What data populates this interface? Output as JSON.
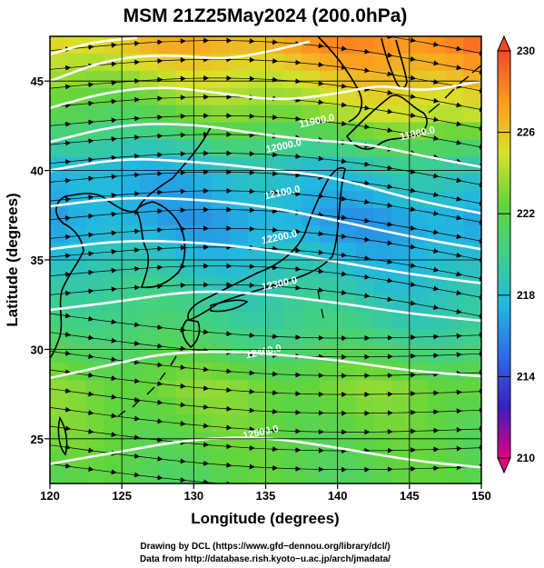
{
  "chart_data": {
    "type": "map",
    "title": "MSM 21Z25May2024 (200.0hPa)",
    "xlabel": "Longitude (degrees)",
    "ylabel": "Latitude  (degrees)",
    "xlim": [
      120,
      150
    ],
    "ylim": [
      22.5,
      47.5
    ],
    "xticks": [
      "120",
      "125",
      "130",
      "135",
      "140",
      "145",
      "150"
    ],
    "yticks": [
      "25",
      "30",
      "35",
      "40",
      "45"
    ],
    "colorbar": {
      "min": 210,
      "max": 230,
      "tick_labels": [
        "230",
        "226",
        "222",
        "218",
        "214",
        "210"
      ],
      "colors": [
        "#e4007f",
        "#3a1fbf",
        "#2f6ae8",
        "#22b8e0",
        "#3fd08a",
        "#62d53c",
        "#d8e22a",
        "#ff9a1e",
        "#f04a2a"
      ]
    },
    "contours": [
      {
        "label": "11900.0",
        "lon": 138.6,
        "lat": 42.6
      },
      {
        "label": "12000.0",
        "lon": 136.3,
        "lat": 41.2
      },
      {
        "label": "12100.0",
        "lon": 136.2,
        "lat": 38.6
      },
      {
        "label": "12200.0",
        "lon": 136.0,
        "lat": 36.1
      },
      {
        "label": "12300.0",
        "lon": 136.0,
        "lat": 33.5
      },
      {
        "label": "12400.0",
        "lon": 134.9,
        "lat": 29.7
      },
      {
        "label": "12500.0",
        "lon": 134.7,
        "lat": 25.2
      },
      {
        "label": "11800.0",
        "lon": 145.6,
        "lat": 41.9
      }
    ],
    "contour_lines": [
      [
        [
          120,
          46.5
        ],
        [
          123,
          47.2
        ],
        [
          126,
          47.4
        ]
      ],
      [
        [
          120,
          45.0
        ],
        [
          124,
          46.2
        ],
        [
          128,
          46.5
        ],
        [
          132,
          46.2
        ],
        [
          135,
          46.6
        ],
        [
          138,
          47.2
        ]
      ],
      [
        [
          120,
          43.5
        ],
        [
          124,
          44.4
        ],
        [
          128,
          44.7
        ],
        [
          132,
          44.3
        ],
        [
          136,
          43.9
        ],
        [
          140,
          44.3
        ],
        [
          143,
          44.8
        ],
        [
          146,
          44.4
        ],
        [
          150,
          45.0
        ]
      ],
      [
        [
          120,
          41.6
        ],
        [
          125,
          42.6
        ],
        [
          130,
          42.6
        ],
        [
          134,
          42.1
        ],
        [
          138,
          41.7
        ],
        [
          142,
          41.5
        ],
        [
          146,
          40.8
        ],
        [
          150,
          40.2
        ]
      ],
      [
        [
          120,
          40.0
        ],
        [
          125,
          40.7
        ],
        [
          130,
          40.5
        ],
        [
          135,
          40.1
        ],
        [
          140,
          39.6
        ],
        [
          145,
          38.4
        ],
        [
          150,
          37.6
        ]
      ],
      [
        [
          120,
          38.0
        ],
        [
          125,
          38.5
        ],
        [
          130,
          38.4
        ],
        [
          135,
          38.0
        ],
        [
          140,
          37.2
        ],
        [
          145,
          36.3
        ],
        [
          150,
          35.6
        ]
      ],
      [
        [
          120,
          35.6
        ],
        [
          125,
          36.1
        ],
        [
          130,
          36.0
        ],
        [
          135,
          35.6
        ],
        [
          140,
          34.9
        ],
        [
          145,
          34.2
        ],
        [
          150,
          33.7
        ]
      ],
      [
        [
          120,
          32.2
        ],
        [
          125,
          32.7
        ],
        [
          130,
          33.3
        ],
        [
          135,
          33.1
        ],
        [
          140,
          32.6
        ],
        [
          145,
          32.0
        ],
        [
          150,
          31.6
        ]
      ],
      [
        [
          120,
          28.4
        ],
        [
          124,
          29.1
        ],
        [
          128,
          29.8
        ],
        [
          132,
          29.9
        ],
        [
          136,
          29.7
        ],
        [
          140,
          29.4
        ],
        [
          145,
          28.8
        ],
        [
          150,
          28.5
        ]
      ],
      [
        [
          120,
          23.6
        ],
        [
          125,
          24.3
        ],
        [
          130,
          25.0
        ],
        [
          135,
          25.1
        ],
        [
          140,
          24.5
        ],
        [
          145,
          23.8
        ],
        [
          150,
          23.4
        ]
      ]
    ],
    "temperature_field": {
      "lat_knots": [
        22.5,
        25,
        28,
        31,
        34,
        37,
        40,
        43,
        47.5
      ],
      "west_k": [
        221.5,
        222.5,
        223,
        221,
        219.5,
        217,
        217,
        221,
        226
      ],
      "east_k": [
        222,
        222,
        223,
        219.5,
        218,
        216.5,
        219,
        225,
        229
      ]
    }
  },
  "footer": {
    "line1": "Drawing by DCL (https://www.gfd−dennou.org/library/dcl/)",
    "line2": "Data from http://database.rish.kyoto−u.ac.jp/arch/jmadata/"
  }
}
